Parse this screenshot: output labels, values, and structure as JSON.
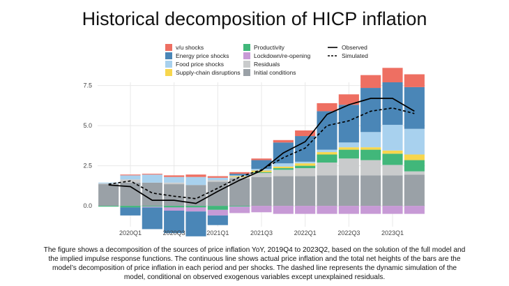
{
  "title": "Historical decomposition of HICP inflation",
  "caption": "The figure shows a decomposition of the sources of price inflation YoY, 2019Q4 to 2023Q2, based on the solution of the full model and the implied impulse response functions. The continuous line shows actual price inflation and the total net heights of the bars are the model’s decomposition of price inflation in each period and per shocks. The dashed line represents the dynamic simulation of the model, conditional on observed exogenous variables except unexplained residuals.",
  "colors": {
    "vu": "#ee6f62",
    "energy": "#4a86b7",
    "food": "#a8d1ee",
    "supply": "#f7d64d",
    "productivity": "#41b77a",
    "lockdown": "#c79ad6",
    "residuals": "#c9cbcc",
    "initial": "#9aa1a7",
    "observed": "#000000",
    "simulated": "#000000",
    "grid": "#e8e8e8",
    "axis_text": "#444444"
  },
  "chart_data": {
    "type": "bar",
    "stacked": true,
    "x": [
      "2019Q4",
      "2020Q1",
      "2020Q2",
      "2020Q3",
      "2020Q4",
      "2021Q1",
      "2021Q2",
      "2021Q3",
      "2021Q4",
      "2022Q1",
      "2022Q2",
      "2022Q3",
      "2022Q4",
      "2023Q1",
      "2023Q2"
    ],
    "x_tick_labels": [
      "2020Q1",
      "2020Q3",
      "2021Q1",
      "2021Q3",
      "2022Q1",
      "2022Q3",
      "2023Q1"
    ],
    "x_tick_positions": [
      "2020Q1",
      "2020Q3",
      "2021Q1",
      "2021Q3",
      "2022Q1",
      "2022Q3",
      "2023Q1"
    ],
    "y_ticks": [
      "0.0",
      "2.5",
      "5.0",
      "7.5"
    ],
    "ylim": [
      -1.3,
      7.7
    ],
    "grid": true,
    "legend_position": "top",
    "legend": {
      "column1": [
        "v/u shocks",
        "Energy price shocks",
        "Food price shocks",
        "Supply-chain disruptions"
      ],
      "column2": [
        "Productivity",
        "Lockdown/re-opening",
        "Residuals",
        "Initial conditions"
      ],
      "column3": [
        "Observed",
        "Simulated"
      ]
    },
    "series": [
      {
        "name": "Initial conditions",
        "key": "initial",
        "values": [
          1.35,
          1.45,
          1.45,
          1.35,
          1.3,
          1.5,
          1.7,
          1.8,
          1.85,
          1.85,
          1.9,
          1.9,
          1.9,
          1.9,
          1.95
        ]
      },
      {
        "name": "Residuals",
        "key": "residuals",
        "values": [
          0.05,
          0.2,
          0.0,
          0.1,
          0.0,
          0.1,
          0.1,
          0.25,
          0.4,
          0.5,
          0.8,
          1.05,
          0.95,
          0.65,
          0.2
        ]
      },
      {
        "name": "Productivity",
        "key": "productivity",
        "values": [
          -0.05,
          -0.1,
          -0.05,
          -0.1,
          -0.1,
          -0.25,
          -0.05,
          0.05,
          0.1,
          0.15,
          0.5,
          0.55,
          0.65,
          0.7,
          0.7
        ]
      },
      {
        "name": "Lockdown/re-opening",
        "key": "lockdown",
        "values": [
          0.0,
          0.0,
          -0.05,
          -0.2,
          -0.25,
          -0.35,
          -0.4,
          -0.4,
          -0.5,
          -0.5,
          -0.5,
          -0.5,
          -0.5,
          -0.5,
          -0.5
        ]
      },
      {
        "name": "Supply-chain disruptions",
        "key": "supply",
        "values": [
          0.0,
          0.0,
          0.0,
          0.0,
          0.0,
          0.0,
          0.05,
          0.1,
          0.1,
          0.15,
          0.15,
          0.15,
          0.15,
          0.2,
          0.35
        ]
      },
      {
        "name": "Food price shocks",
        "key": "food",
        "values": [
          0.05,
          0.25,
          0.5,
          0.35,
          0.5,
          0.15,
          0.05,
          0.1,
          0.2,
          0.1,
          0.15,
          0.3,
          0.95,
          1.6,
          1.6
        ]
      },
      {
        "name": "Energy price shocks",
        "key": "energy",
        "values": [
          0.0,
          -0.5,
          -1.35,
          -1.4,
          -1.55,
          -0.6,
          0.1,
          0.55,
          1.3,
          1.6,
          2.4,
          2.35,
          2.75,
          2.65,
          2.6
        ]
      },
      {
        "name": "v/u shocks",
        "key": "vu",
        "values": [
          0.0,
          0.05,
          0.05,
          0.1,
          0.15,
          0.1,
          0.1,
          0.1,
          0.15,
          0.35,
          0.5,
          0.65,
          0.8,
          0.9,
          0.8
        ]
      }
    ],
    "lines": [
      {
        "name": "Observed",
        "key": "observed",
        "style": "solid",
        "values": [
          1.3,
          1.2,
          0.35,
          0.35,
          0.15,
          0.9,
          1.6,
          2.2,
          3.3,
          4.0,
          5.7,
          6.3,
          6.7,
          6.7,
          5.9
        ]
      },
      {
        "name": "Simulated",
        "key": "simulated",
        "style": "dashed",
        "values": [
          1.35,
          1.55,
          0.8,
          0.6,
          0.45,
          1.1,
          1.8,
          2.25,
          3.0,
          3.6,
          5.0,
          5.3,
          5.9,
          6.1,
          5.75
        ]
      }
    ]
  }
}
